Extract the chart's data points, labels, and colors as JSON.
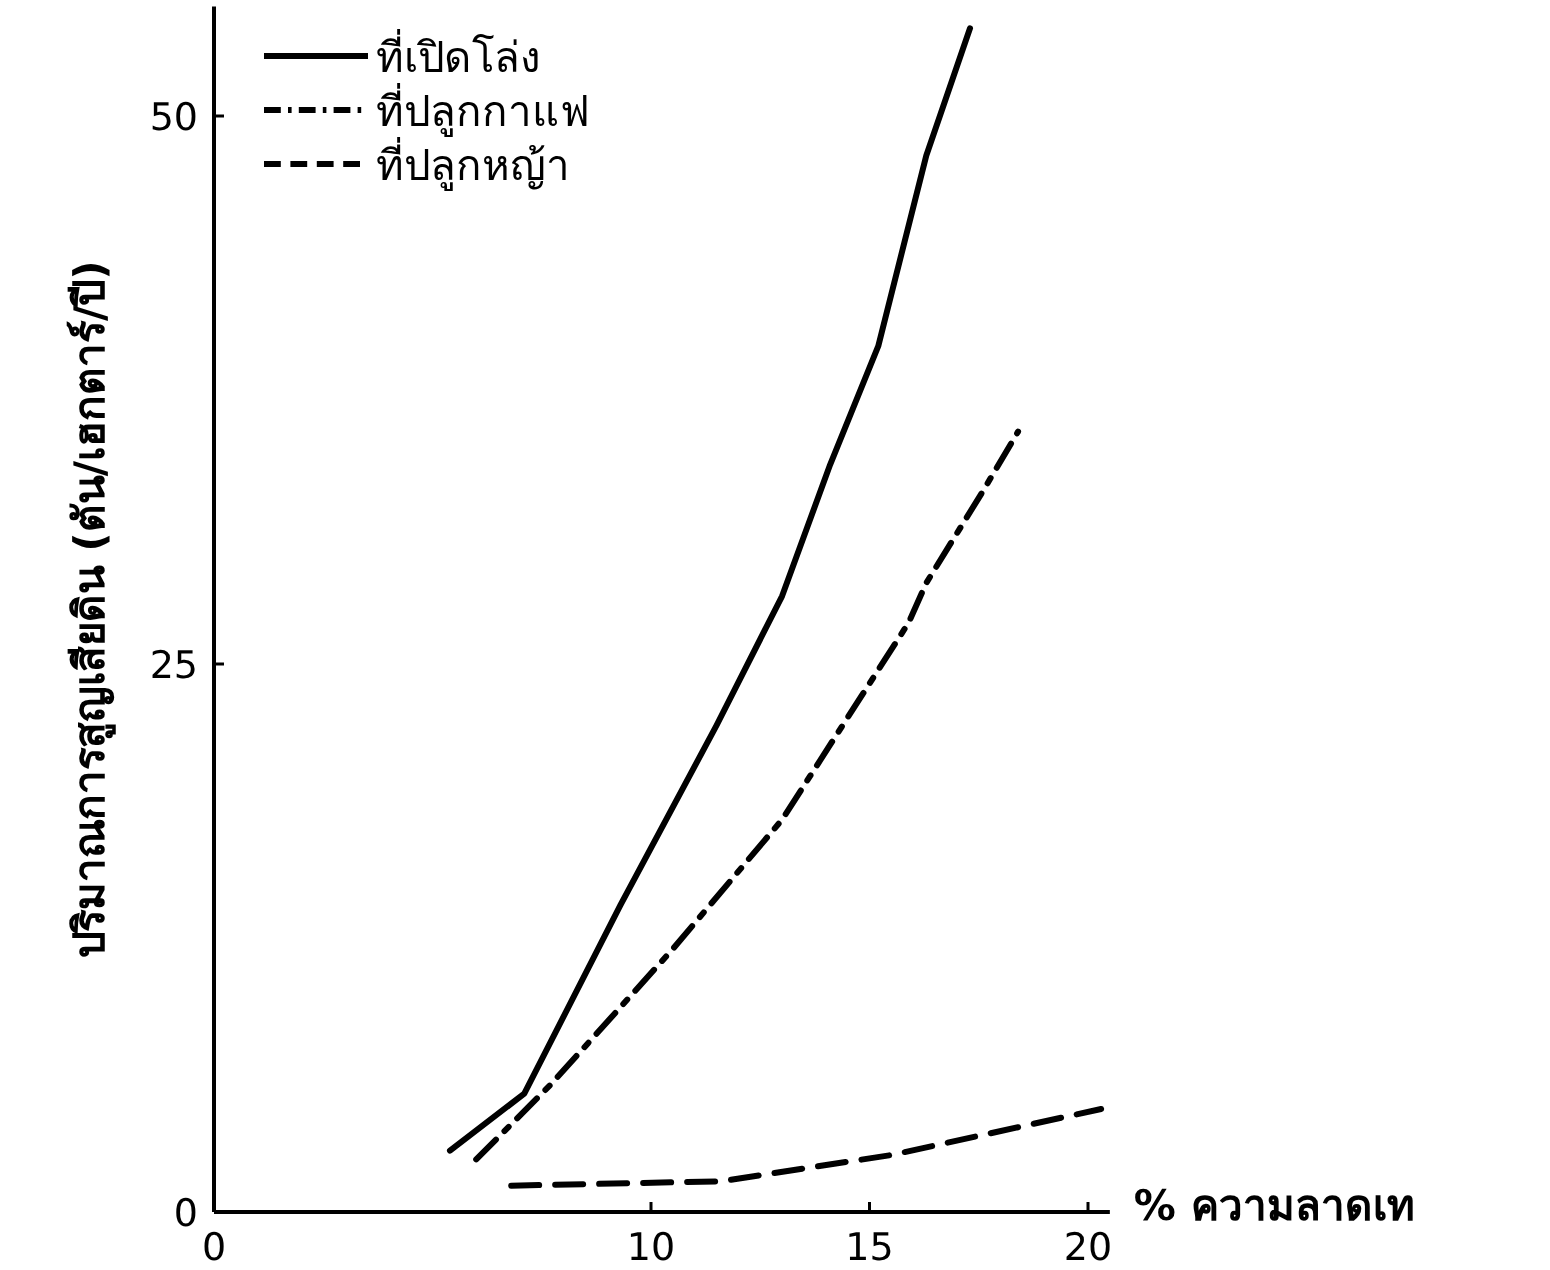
{
  "chart_data": {
    "type": "line",
    "xlabel": "% ความลาดเท",
    "ylabel": "ปริมาณการสูญเสียดิน (ตัน/เฮกตาร์/ปี)",
    "xlim": [
      0,
      20.5
    ],
    "ylim": [
      0,
      55
    ],
    "xticks": [
      0,
      10,
      15,
      20
    ],
    "yticks": [
      0,
      25,
      50
    ],
    "legend": "top left",
    "series": [
      {
        "name": "ที่เปิดโล่ง",
        "color": "#000000",
        "line_style": "solid",
        "x": [
          5.4,
          7.1,
          9.3,
          11.5,
          13.0,
          14.1,
          15.2,
          16.3,
          17.3
        ],
        "values": [
          2.8,
          5.4,
          14.0,
          22.2,
          28.1,
          34.1,
          39.5,
          48.2,
          54.0
        ]
      },
      {
        "name": "ที่ปลูกกาแฟ",
        "color": "#000000",
        "line_style": "dashdot",
        "x": [
          6.0,
          7.7,
          10.5,
          13.0,
          14.9,
          15.9,
          16.3,
          17.6,
          18.4
        ],
        "values": [
          2.4,
          5.8,
          12.0,
          17.9,
          23.8,
          26.9,
          28.7,
          32.9,
          35.6
        ]
      },
      {
        "name": "ที่ปลูกหญ้า",
        "color": "#000000",
        "line_style": "dashed",
        "x": [
          6.8,
          11.6,
          15.5,
          20.3
        ],
        "values": [
          1.2,
          1.4,
          2.6,
          4.7
        ]
      }
    ]
  }
}
